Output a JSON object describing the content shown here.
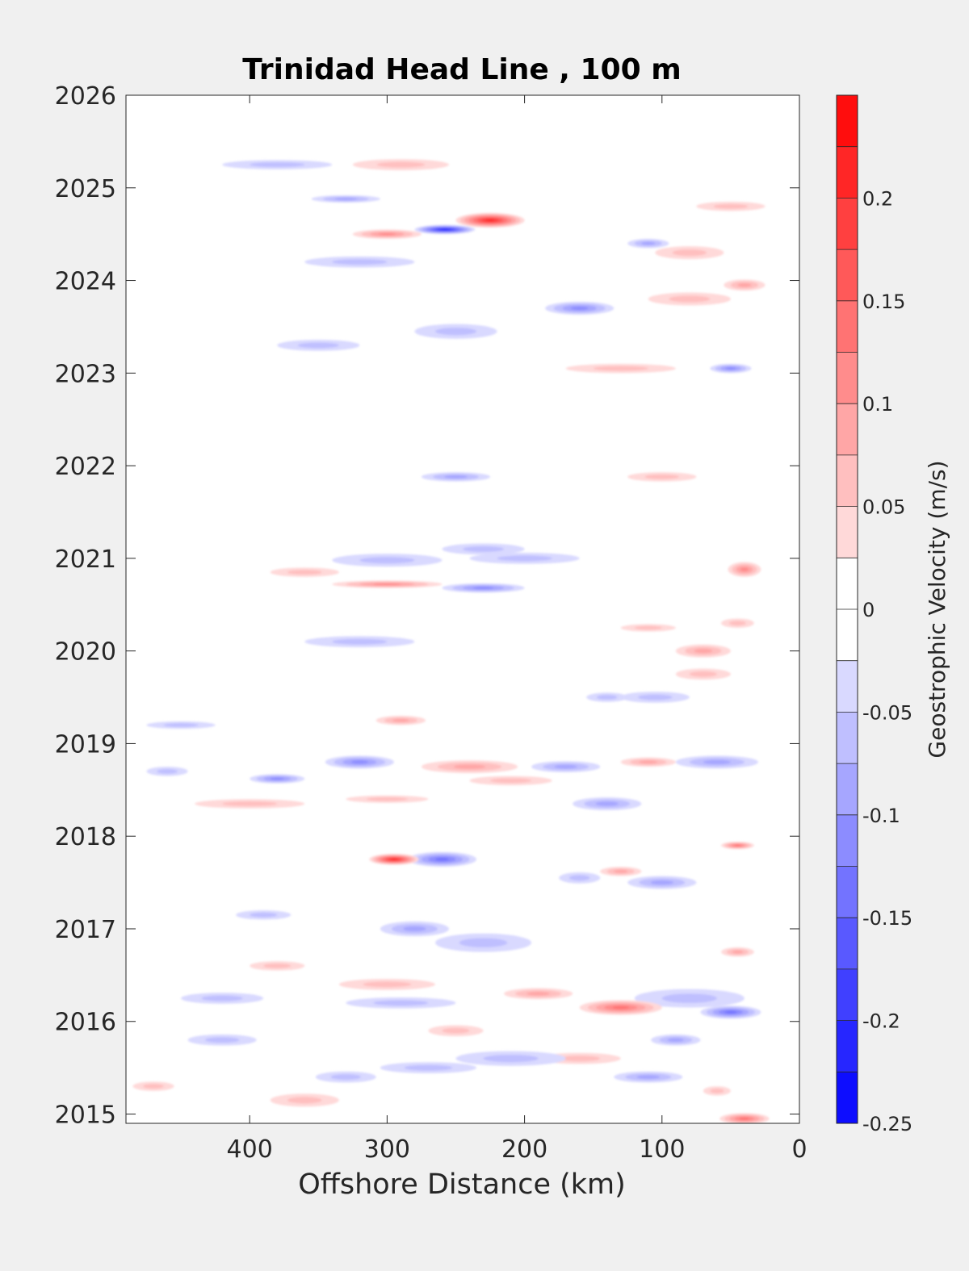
{
  "chart_data": {
    "type": "heatmap",
    "title": "Trinidad Head Line , 100 m",
    "xlabel": "Offshore Distance (km)",
    "ylabel": "",
    "x_reversed": true,
    "xlim": [
      0,
      490
    ],
    "ylim": [
      2014.9,
      2026
    ],
    "x_ticks": [
      400,
      300,
      200,
      100,
      0
    ],
    "y_ticks": [
      2015,
      2016,
      2017,
      2018,
      2019,
      2020,
      2021,
      2022,
      2023,
      2024,
      2025,
      2026
    ],
    "colorbar": {
      "label": "Geostrophic Velocity (m/s)",
      "range": [
        -0.25,
        0.25
      ],
      "tick_values": [
        0.2,
        0.15,
        0.1,
        0.05,
        0,
        -0.05,
        -0.1,
        -0.15,
        -0.2,
        -0.25
      ],
      "tick_labels": [
        "0.2",
        "0.15",
        "0.1",
        "0.05",
        "0",
        "-0.05",
        "-0.1",
        "-0.15",
        "-0.2",
        "-0.25"
      ],
      "negative_color": "#0000ff",
      "zero_color": "#ffffff",
      "positive_color": "#ff0000"
    },
    "data_gaps": [
      [
        2021.9,
        2022.05
      ],
      [
        2021.15,
        2021.7
      ],
      [
        2020.4,
        2020.7
      ],
      [
        2022.0,
        2023.0
      ]
    ],
    "features": [
      {
        "x": 295,
        "y": 2017.75,
        "dx": 18,
        "dy": 0.06,
        "v": 0.22
      },
      {
        "x": 260,
        "y": 2017.75,
        "dx": 25,
        "dy": 0.08,
        "v": -0.15
      },
      {
        "x": 225,
        "y": 2024.65,
        "dx": 25,
        "dy": 0.08,
        "v": 0.22
      },
      {
        "x": 258,
        "y": 2024.55,
        "dx": 22,
        "dy": 0.05,
        "v": -0.2
      },
      {
        "x": 300,
        "y": 2024.5,
        "dx": 25,
        "dy": 0.05,
        "v": 0.12
      },
      {
        "x": 130,
        "y": 2016.15,
        "dx": 30,
        "dy": 0.08,
        "v": 0.15
      },
      {
        "x": 50,
        "y": 2016.1,
        "dx": 22,
        "dy": 0.07,
        "v": -0.15
      },
      {
        "x": 40,
        "y": 2014.95,
        "dx": 18,
        "dy": 0.06,
        "v": 0.15
      },
      {
        "x": 50,
        "y": 2023.05,
        "dx": 15,
        "dy": 0.05,
        "v": -0.12
      },
      {
        "x": 160,
        "y": 2023.7,
        "dx": 25,
        "dy": 0.07,
        "v": -0.1
      },
      {
        "x": 240,
        "y": 2018.75,
        "dx": 35,
        "dy": 0.07,
        "v": 0.08
      },
      {
        "x": 320,
        "y": 2018.8,
        "dx": 25,
        "dy": 0.07,
        "v": -0.1
      },
      {
        "x": 380,
        "y": 2018.62,
        "dx": 20,
        "dy": 0.05,
        "v": -0.1
      },
      {
        "x": 230,
        "y": 2020.68,
        "dx": 30,
        "dy": 0.05,
        "v": -0.12
      },
      {
        "x": 40,
        "y": 2023.95,
        "dx": 15,
        "dy": 0.06,
        "v": 0.08
      },
      {
        "x": 110,
        "y": 2024.4,
        "dx": 15,
        "dy": 0.05,
        "v": -0.08
      },
      {
        "x": 90,
        "y": 2015.8,
        "dx": 18,
        "dy": 0.06,
        "v": -0.08
      },
      {
        "x": 190,
        "y": 2016.3,
        "dx": 25,
        "dy": 0.06,
        "v": 0.08
      },
      {
        "x": 210,
        "y": 2015.6,
        "dx": 40,
        "dy": 0.08,
        "v": -0.06
      },
      {
        "x": 80,
        "y": 2016.25,
        "dx": 40,
        "dy": 0.1,
        "v": -0.07
      },
      {
        "x": 105,
        "y": 2019.5,
        "dx": 25,
        "dy": 0.06,
        "v": -0.07
      },
      {
        "x": 70,
        "y": 2019.75,
        "dx": 20,
        "dy": 0.06,
        "v": 0.06
      },
      {
        "x": 110,
        "y": 2018.8,
        "dx": 20,
        "dy": 0.05,
        "v": 0.08
      },
      {
        "x": 60,
        "y": 2018.8,
        "dx": 30,
        "dy": 0.07,
        "v": -0.08
      },
      {
        "x": 140,
        "y": 2018.35,
        "dx": 25,
        "dy": 0.07,
        "v": -0.08
      },
      {
        "x": 380,
        "y": 2016.6,
        "dx": 20,
        "dy": 0.05,
        "v": 0.06
      },
      {
        "x": 300,
        "y": 2016.4,
        "dx": 35,
        "dy": 0.06,
        "v": 0.07
      },
      {
        "x": 230,
        "y": 2016.85,
        "dx": 35,
        "dy": 0.1,
        "v": -0.06
      },
      {
        "x": 280,
        "y": 2017.0,
        "dx": 25,
        "dy": 0.08,
        "v": -0.08
      },
      {
        "x": 420,
        "y": 2015.8,
        "dx": 25,
        "dy": 0.06,
        "v": -0.07
      },
      {
        "x": 330,
        "y": 2015.4,
        "dx": 22,
        "dy": 0.06,
        "v": -0.07
      },
      {
        "x": 270,
        "y": 2015.5,
        "dx": 35,
        "dy": 0.06,
        "v": -0.07
      },
      {
        "x": 110,
        "y": 2015.4,
        "dx": 25,
        "dy": 0.06,
        "v": -0.08
      },
      {
        "x": 360,
        "y": 2015.15,
        "dx": 25,
        "dy": 0.07,
        "v": 0.06
      },
      {
        "x": 60,
        "y": 2015.25,
        "dx": 10,
        "dy": 0.05,
        "v": 0.05
      },
      {
        "x": 100,
        "y": 2017.5,
        "dx": 25,
        "dy": 0.07,
        "v": -0.09
      },
      {
        "x": 160,
        "y": 2017.55,
        "dx": 15,
        "dy": 0.06,
        "v": -0.06
      },
      {
        "x": 130,
        "y": 2017.62,
        "dx": 15,
        "dy": 0.05,
        "v": 0.08
      },
      {
        "x": 45,
        "y": 2017.9,
        "dx": 12,
        "dy": 0.04,
        "v": 0.14
      },
      {
        "x": 45,
        "y": 2016.75,
        "dx": 12,
        "dy": 0.05,
        "v": 0.08
      },
      {
        "x": 45,
        "y": 2020.3,
        "dx": 12,
        "dy": 0.05,
        "v": 0.06
      },
      {
        "x": 40,
        "y": 2020.88,
        "dx": 12,
        "dy": 0.08,
        "v": 0.1
      },
      {
        "x": 360,
        "y": 2020.85,
        "dx": 25,
        "dy": 0.05,
        "v": 0.07
      },
      {
        "x": 300,
        "y": 2020.72,
        "dx": 40,
        "dy": 0.04,
        "v": 0.1
      },
      {
        "x": 300,
        "y": 2020.98,
        "dx": 40,
        "dy": 0.07,
        "v": -0.06
      },
      {
        "x": 200,
        "y": 2021.0,
        "dx": 40,
        "dy": 0.06,
        "v": -0.07
      },
      {
        "x": 230,
        "y": 2021.1,
        "dx": 30,
        "dy": 0.06,
        "v": -0.05
      },
      {
        "x": 250,
        "y": 2021.88,
        "dx": 25,
        "dy": 0.05,
        "v": -0.08
      },
      {
        "x": 100,
        "y": 2021.88,
        "dx": 25,
        "dy": 0.05,
        "v": 0.05
      },
      {
        "x": 110,
        "y": 2020.25,
        "dx": 20,
        "dy": 0.04,
        "v": 0.07
      },
      {
        "x": 70,
        "y": 2020.0,
        "dx": 20,
        "dy": 0.07,
        "v": 0.08
      },
      {
        "x": 290,
        "y": 2019.25,
        "dx": 18,
        "dy": 0.05,
        "v": 0.08
      },
      {
        "x": 210,
        "y": 2018.6,
        "dx": 30,
        "dy": 0.05,
        "v": 0.05
      },
      {
        "x": 170,
        "y": 2018.75,
        "dx": 25,
        "dy": 0.06,
        "v": -0.08
      },
      {
        "x": 140,
        "y": 2019.5,
        "dx": 15,
        "dy": 0.05,
        "v": -0.06
      },
      {
        "x": 80,
        "y": 2024.3,
        "dx": 25,
        "dy": 0.07,
        "v": 0.07
      },
      {
        "x": 80,
        "y": 2023.8,
        "dx": 30,
        "dy": 0.07,
        "v": 0.07
      },
      {
        "x": 130,
        "y": 2023.05,
        "dx": 40,
        "dy": 0.05,
        "v": 0.06
      },
      {
        "x": 320,
        "y": 2024.2,
        "dx": 40,
        "dy": 0.06,
        "v": -0.06
      },
      {
        "x": 350,
        "y": 2023.3,
        "dx": 30,
        "dy": 0.06,
        "v": -0.06
      },
      {
        "x": 250,
        "y": 2023.45,
        "dx": 30,
        "dy": 0.08,
        "v": -0.06
      },
      {
        "x": 380,
        "y": 2025.25,
        "dx": 40,
        "dy": 0.05,
        "v": -0.05
      },
      {
        "x": 290,
        "y": 2025.25,
        "dx": 35,
        "dy": 0.06,
        "v": 0.05
      },
      {
        "x": 330,
        "y": 2024.88,
        "dx": 25,
        "dy": 0.04,
        "v": -0.08
      },
      {
        "x": 50,
        "y": 2024.8,
        "dx": 25,
        "dy": 0.05,
        "v": 0.05
      },
      {
        "x": 320,
        "y": 2020.1,
        "dx": 40,
        "dy": 0.06,
        "v": -0.05
      },
      {
        "x": 420,
        "y": 2016.25,
        "dx": 30,
        "dy": 0.06,
        "v": -0.05
      },
      {
        "x": 290,
        "y": 2016.2,
        "dx": 40,
        "dy": 0.06,
        "v": -0.05
      },
      {
        "x": 160,
        "y": 2015.6,
        "dx": 30,
        "dy": 0.06,
        "v": 0.05
      },
      {
        "x": 250,
        "y": 2015.9,
        "dx": 20,
        "dy": 0.06,
        "v": 0.06
      },
      {
        "x": 450,
        "y": 2019.2,
        "dx": 25,
        "dy": 0.04,
        "v": -0.05
      },
      {
        "x": 400,
        "y": 2018.35,
        "dx": 40,
        "dy": 0.05,
        "v": 0.05
      },
      {
        "x": 300,
        "y": 2018.4,
        "dx": 30,
        "dy": 0.04,
        "v": 0.05
      },
      {
        "x": 390,
        "y": 2017.15,
        "dx": 20,
        "dy": 0.05,
        "v": -0.05
      },
      {
        "x": 460,
        "y": 2018.7,
        "dx": 15,
        "dy": 0.05,
        "v": -0.06
      },
      {
        "x": 470,
        "y": 2015.3,
        "dx": 15,
        "dy": 0.05,
        "v": 0.05
      }
    ]
  }
}
